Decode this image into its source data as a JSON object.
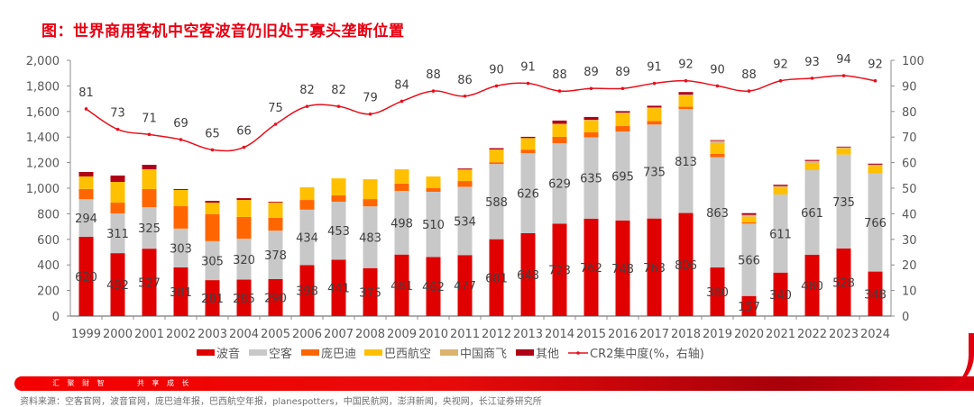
{
  "title": "图：世界商用客机中空客波音仍旧处于寡头垄断位置",
  "footer": {
    "slogan": "汇 聚 财 智      共 享 成 长",
    "source": "资料来源：空客官网，波音官网，庞巴迪年报，巴西航空年报，planespotters，中国民航网，澎湃新闻，央视网，长江证券研究所"
  },
  "chart_data": {
    "type": "bar",
    "stacked": true,
    "title": "世界商用客机中空客波音仍旧处于寡头垄断位置",
    "categories": [
      "1999",
      "2000",
      "2001",
      "2002",
      "2003",
      "2004",
      "2005",
      "2006",
      "2007",
      "2008",
      "2009",
      "2010",
      "2011",
      "2012",
      "2013",
      "2014",
      "2015",
      "2016",
      "2017",
      "2018",
      "2019",
      "2020",
      "2021",
      "2022",
      "2023",
      "2024"
    ],
    "series": [
      {
        "name": "波音",
        "color": "#e00000",
        "labeled": true,
        "values": [
          620,
          492,
          527,
          381,
          281,
          285,
          290,
          398,
          441,
          375,
          481,
          462,
          477,
          601,
          648,
          723,
          762,
          748,
          763,
          806,
          380,
          157,
          340,
          480,
          528,
          348
        ]
      },
      {
        "name": "空客",
        "color": "#c8c8c8",
        "labeled": true,
        "values": [
          294,
          311,
          325,
          303,
          305,
          320,
          378,
          434,
          453,
          483,
          498,
          510,
          534,
          588,
          626,
          629,
          635,
          695,
          735,
          813,
          863,
          566,
          611,
          661,
          735,
          766
        ]
      },
      {
        "name": "庞巴迪",
        "color": "#ff6600",
        "labeled": false,
        "values": [
          80,
          84,
          141,
          175,
          210,
          170,
          100,
          76,
          50,
          57,
          57,
          28,
          45,
          14,
          28,
          50,
          40,
          44,
          28,
          18,
          25,
          10,
          0,
          0,
          0,
          0
        ]
      },
      {
        "name": "巴西航空",
        "color": "#ffc000",
        "labeled": false,
        "values": [
          98,
          162,
          155,
          127,
          91,
          133,
          120,
          99,
          133,
          155,
          112,
          92,
          90,
          100,
          90,
          100,
          95,
          100,
          100,
          90,
          85,
          44,
          50,
          57,
          48,
          60
        ]
      },
      {
        "name": "中国商飞",
        "color": "#dcb46e",
        "labeled": false,
        "values": [
          0,
          0,
          0,
          0,
          0,
          0,
          0,
          0,
          0,
          0,
          0,
          0,
          0,
          0,
          0,
          2,
          3,
          4,
          5,
          5,
          18,
          14,
          16,
          15,
          8,
          10
        ]
      },
      {
        "name": "其他",
        "color": "#b00018",
        "labeled": false,
        "values": [
          35,
          50,
          35,
          7,
          14,
          14,
          6,
          0,
          0,
          0,
          0,
          0,
          8,
          10,
          10,
          25,
          22,
          12,
          14,
          20,
          5,
          14,
          10,
          8,
          6,
          8
        ]
      }
    ],
    "line": {
      "name": "CR2集中度(%，右轴)",
      "color": "#e8101c",
      "axis": "right",
      "values": [
        81,
        73,
        71,
        69,
        65,
        66,
        75,
        82,
        82,
        79,
        84,
        88,
        86,
        90,
        91,
        88,
        89,
        89,
        91,
        92,
        90,
        88,
        92,
        93,
        94,
        92
      ]
    },
    "y_left": {
      "min": 0,
      "max": 2000,
      "ticks": [
        "0",
        "200",
        "400",
        "600",
        "800",
        "1,000",
        "1,200",
        "1,400",
        "1,600",
        "1,800",
        "2,000"
      ]
    },
    "y_right": {
      "min": 0,
      "max": 100,
      "ticks": [
        "0",
        "10",
        "20",
        "30",
        "40",
        "50",
        "60",
        "70",
        "80",
        "90",
        "100"
      ]
    },
    "xlabel": "",
    "ylabel": "",
    "grid": false,
    "legend": {
      "position": "bottom",
      "entries": [
        {
          "label": "波音",
          "color": "#e00000",
          "kind": "box"
        },
        {
          "label": "空客",
          "color": "#c8c8c8",
          "kind": "box"
        },
        {
          "label": "庞巴迪",
          "color": "#ff6600",
          "kind": "box"
        },
        {
          "label": "巴西航空",
          "color": "#ffc000",
          "kind": "box"
        },
        {
          "label": "中国商飞",
          "color": "#dcb46e",
          "kind": "box"
        },
        {
          "label": "其他",
          "color": "#b00018",
          "kind": "box"
        },
        {
          "label": "CR2集中度(%，右轴)",
          "color": "#e8101c",
          "kind": "line"
        }
      ]
    }
  }
}
